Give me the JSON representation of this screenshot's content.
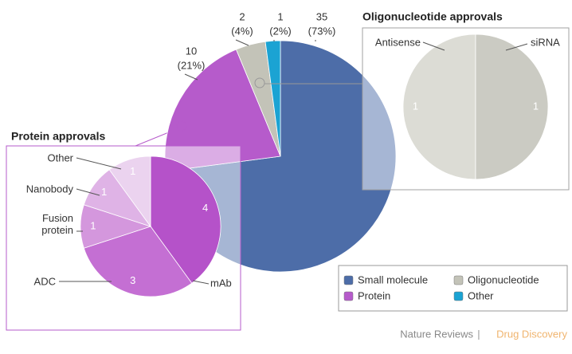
{
  "chart_data": [
    {
      "type": "pie",
      "categories": [
        "Small molecule",
        "Protein",
        "Oligonucleotide",
        "Other"
      ],
      "values": [
        35,
        10,
        2,
        1
      ],
      "percent_labels": [
        "(73%)",
        "(21%)",
        "(4%)",
        "(2%)"
      ],
      "colors": [
        "#4d6da8",
        "#b65bcb",
        "#c3c3b8",
        "#1ba3d3"
      ],
      "legend": "bottom-right"
    },
    {
      "type": "pie",
      "title": "Protein approvals",
      "categories": [
        "mAb",
        "ADC",
        "Fusion protein",
        "Nanobody",
        "Other"
      ],
      "values": [
        4,
        3,
        1,
        1,
        1
      ],
      "colors": [
        "#b552c9",
        "#c46fd3",
        "#d497dd",
        "#dfb3e6",
        "#ebd3ef"
      ]
    },
    {
      "type": "pie",
      "title": "Oligonucleotide approvals",
      "categories": [
        "Antisense",
        "siRNA"
      ],
      "values": [
        1,
        1
      ],
      "colors": [
        "#dcdcd5",
        "#cbcbc3"
      ]
    }
  ],
  "footer": {
    "journal": "Nature Reviews",
    "separator": "|",
    "section": "Drug Discovery"
  }
}
